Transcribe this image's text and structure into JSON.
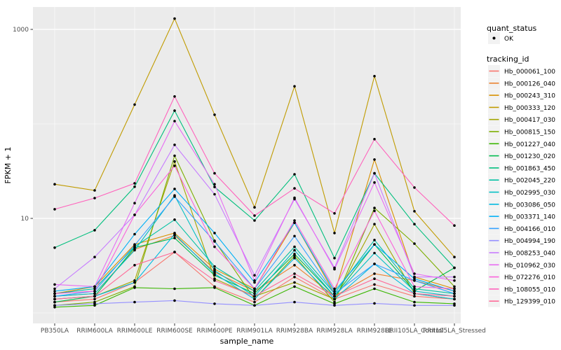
{
  "figure": {
    "background": "#FFFFFF",
    "panel_background": "#EBEBEB",
    "gridline_color": "#FFFFFF",
    "point_color": "#000000",
    "tick_label_color": "#4D4D4D",
    "legend_key_background": "#F2F2F2"
  },
  "chart_data": {
    "type": "line",
    "x_axis": {
      "title": "sample_name",
      "categories": [
        "PB350LA",
        "RRIM600LA",
        "RRIM600LE",
        "RRIM600SE",
        "RRIM600PE",
        "RRIM901LA",
        "RRIM928BA",
        "RRIM928LA",
        "RRIM928LE",
        "RRII105LA_Control",
        "RRII105LA_Stressed"
      ]
    },
    "y_axis": {
      "title": "FPKM + 1",
      "scale": "log10",
      "tick_labels": [
        "1000",
        "10"
      ],
      "tick_values": [
        1000,
        10
      ],
      "minor_gridlines": [
        1,
        100
      ],
      "ylim": [
        0.8,
        1700
      ]
    },
    "legend": {
      "quant_status": {
        "title": "quant_status",
        "items": [
          {
            "label": "OK",
            "marker": "point"
          }
        ]
      },
      "tracking_id_title": "tracking_id"
    },
    "series": [
      {
        "name": "Hb_000061_100",
        "color": "#F8766D",
        "values": [
          1.3,
          1.4,
          2.1,
          4.4,
          1.9,
          1.3,
          2.4,
          1.4,
          2.0,
          1.5,
          1.4
        ]
      },
      {
        "name": "Hb_000126_040",
        "color": "#EA8331",
        "values": [
          1.5,
          1.6,
          4.7,
          6.6,
          2.7,
          1.7,
          3.2,
          1.5,
          2.6,
          2.2,
          1.7
        ]
      },
      {
        "name": "Hb_000243_310",
        "color": "#D89000",
        "values": [
          1.6,
          1.9,
          5.3,
          7.0,
          2.9,
          1.8,
          9.0,
          1.6,
          42.0,
          2.4,
          1.8
        ]
      },
      {
        "name": "Hb_000333_120",
        "color": "#C09B00",
        "values": [
          23.0,
          19.8,
          160.0,
          1300.0,
          125.0,
          13.1,
          250.0,
          7.0,
          320.0,
          11.9,
          3.9
        ]
      },
      {
        "name": "Hb_000417_030",
        "color": "#A3A500",
        "values": [
          1.4,
          1.5,
          2.2,
          40.0,
          2.3,
          1.5,
          2.1,
          1.4,
          8.7,
          1.6,
          1.4
        ]
      },
      {
        "name": "Hb_000815_150",
        "color": "#7CAE00",
        "values": [
          1.2,
          1.3,
          1.9,
          46.0,
          5.8,
          1.4,
          4.0,
          1.3,
          12.9,
          5.4,
          1.9
        ]
      },
      {
        "name": "Hb_001227_040",
        "color": "#39B600",
        "values": [
          1.15,
          1.2,
          1.85,
          1.8,
          1.85,
          1.2,
          1.9,
          1.25,
          1.8,
          1.3,
          1.25
        ]
      },
      {
        "name": "Hb_001230_020",
        "color": "#00BB4E",
        "values": [
          1.3,
          1.5,
          4.9,
          6.2,
          2.5,
          1.6,
          4.2,
          1.5,
          5.3,
          1.7,
          3.0
        ]
      },
      {
        "name": "Hb_001863_450",
        "color": "#00BF7D",
        "values": [
          4.9,
          7.5,
          21.6,
          138.0,
          21.5,
          9.5,
          29.3,
          3.8,
          30.0,
          8.7,
          3.0
        ]
      },
      {
        "name": "Hb_002045_220",
        "color": "#00C1A3",
        "values": [
          1.6,
          1.8,
          5.0,
          9.7,
          3.1,
          1.7,
          5.0,
          1.6,
          5.9,
          1.8,
          1.6
        ]
      },
      {
        "name": "Hb_002995_030",
        "color": "#00BFC4",
        "values": [
          1.5,
          1.6,
          4.6,
          17.5,
          2.8,
          1.5,
          4.6,
          1.5,
          4.3,
          1.7,
          1.5
        ]
      },
      {
        "name": "Hb_003086_050",
        "color": "#00BAE0",
        "values": [
          1.4,
          1.5,
          2.1,
          6.8,
          2.6,
          1.4,
          3.8,
          1.4,
          3.3,
          1.6,
          1.4
        ]
      },
      {
        "name": "Hb_003371_140",
        "color": "#00B0F6",
        "values": [
          1.7,
          1.9,
          6.8,
          20.5,
          7.0,
          2.1,
          9.0,
          1.7,
          5.3,
          2.3,
          1.7
        ]
      },
      {
        "name": "Hb_004166_010",
        "color": "#35A2FF",
        "values": [
          1.5,
          1.7,
          5.2,
          17.0,
          5.7,
          1.8,
          6.5,
          1.6,
          3.3,
          2.2,
          1.6
        ]
      },
      {
        "name": "Hb_004994_190",
        "color": "#9590FF",
        "values": [
          1.2,
          1.25,
          1.3,
          1.35,
          1.25,
          1.2,
          1.3,
          1.2,
          1.26,
          1.2,
          1.2
        ]
      },
      {
        "name": "Hb_008253_040",
        "color": "#C77CFF",
        "values": [
          1.8,
          3.9,
          10.9,
          60.0,
          18.0,
          2.5,
          16.0,
          3.0,
          30.0,
          2.4,
          2.4
        ]
      },
      {
        "name": "Hb_010962_030",
        "color": "#E76BF3",
        "values": [
          2.0,
          1.9,
          14.5,
          107.0,
          23.0,
          2.2,
          16.5,
          2.9,
          24.0,
          2.6,
          2.2
        ]
      },
      {
        "name": "Hb_072276_010",
        "color": "#FA62DB",
        "values": [
          1.6,
          1.7,
          10.9,
          36.0,
          5.0,
          1.8,
          9.5,
          1.8,
          12.0,
          1.9,
          1.8
        ]
      },
      {
        "name": "Hb_108055_010",
        "color": "#FF62BC",
        "values": [
          12.5,
          16.4,
          23.5,
          195.0,
          30.0,
          10.7,
          20.8,
          11.3,
          69.0,
          21.2,
          8.4
        ]
      },
      {
        "name": "Hb_129399_010",
        "color": "#FF6A98",
        "values": [
          1.4,
          1.5,
          3.2,
          4.4,
          2.2,
          1.5,
          2.6,
          1.5,
          2.3,
          1.6,
          1.5
        ]
      }
    ]
  }
}
